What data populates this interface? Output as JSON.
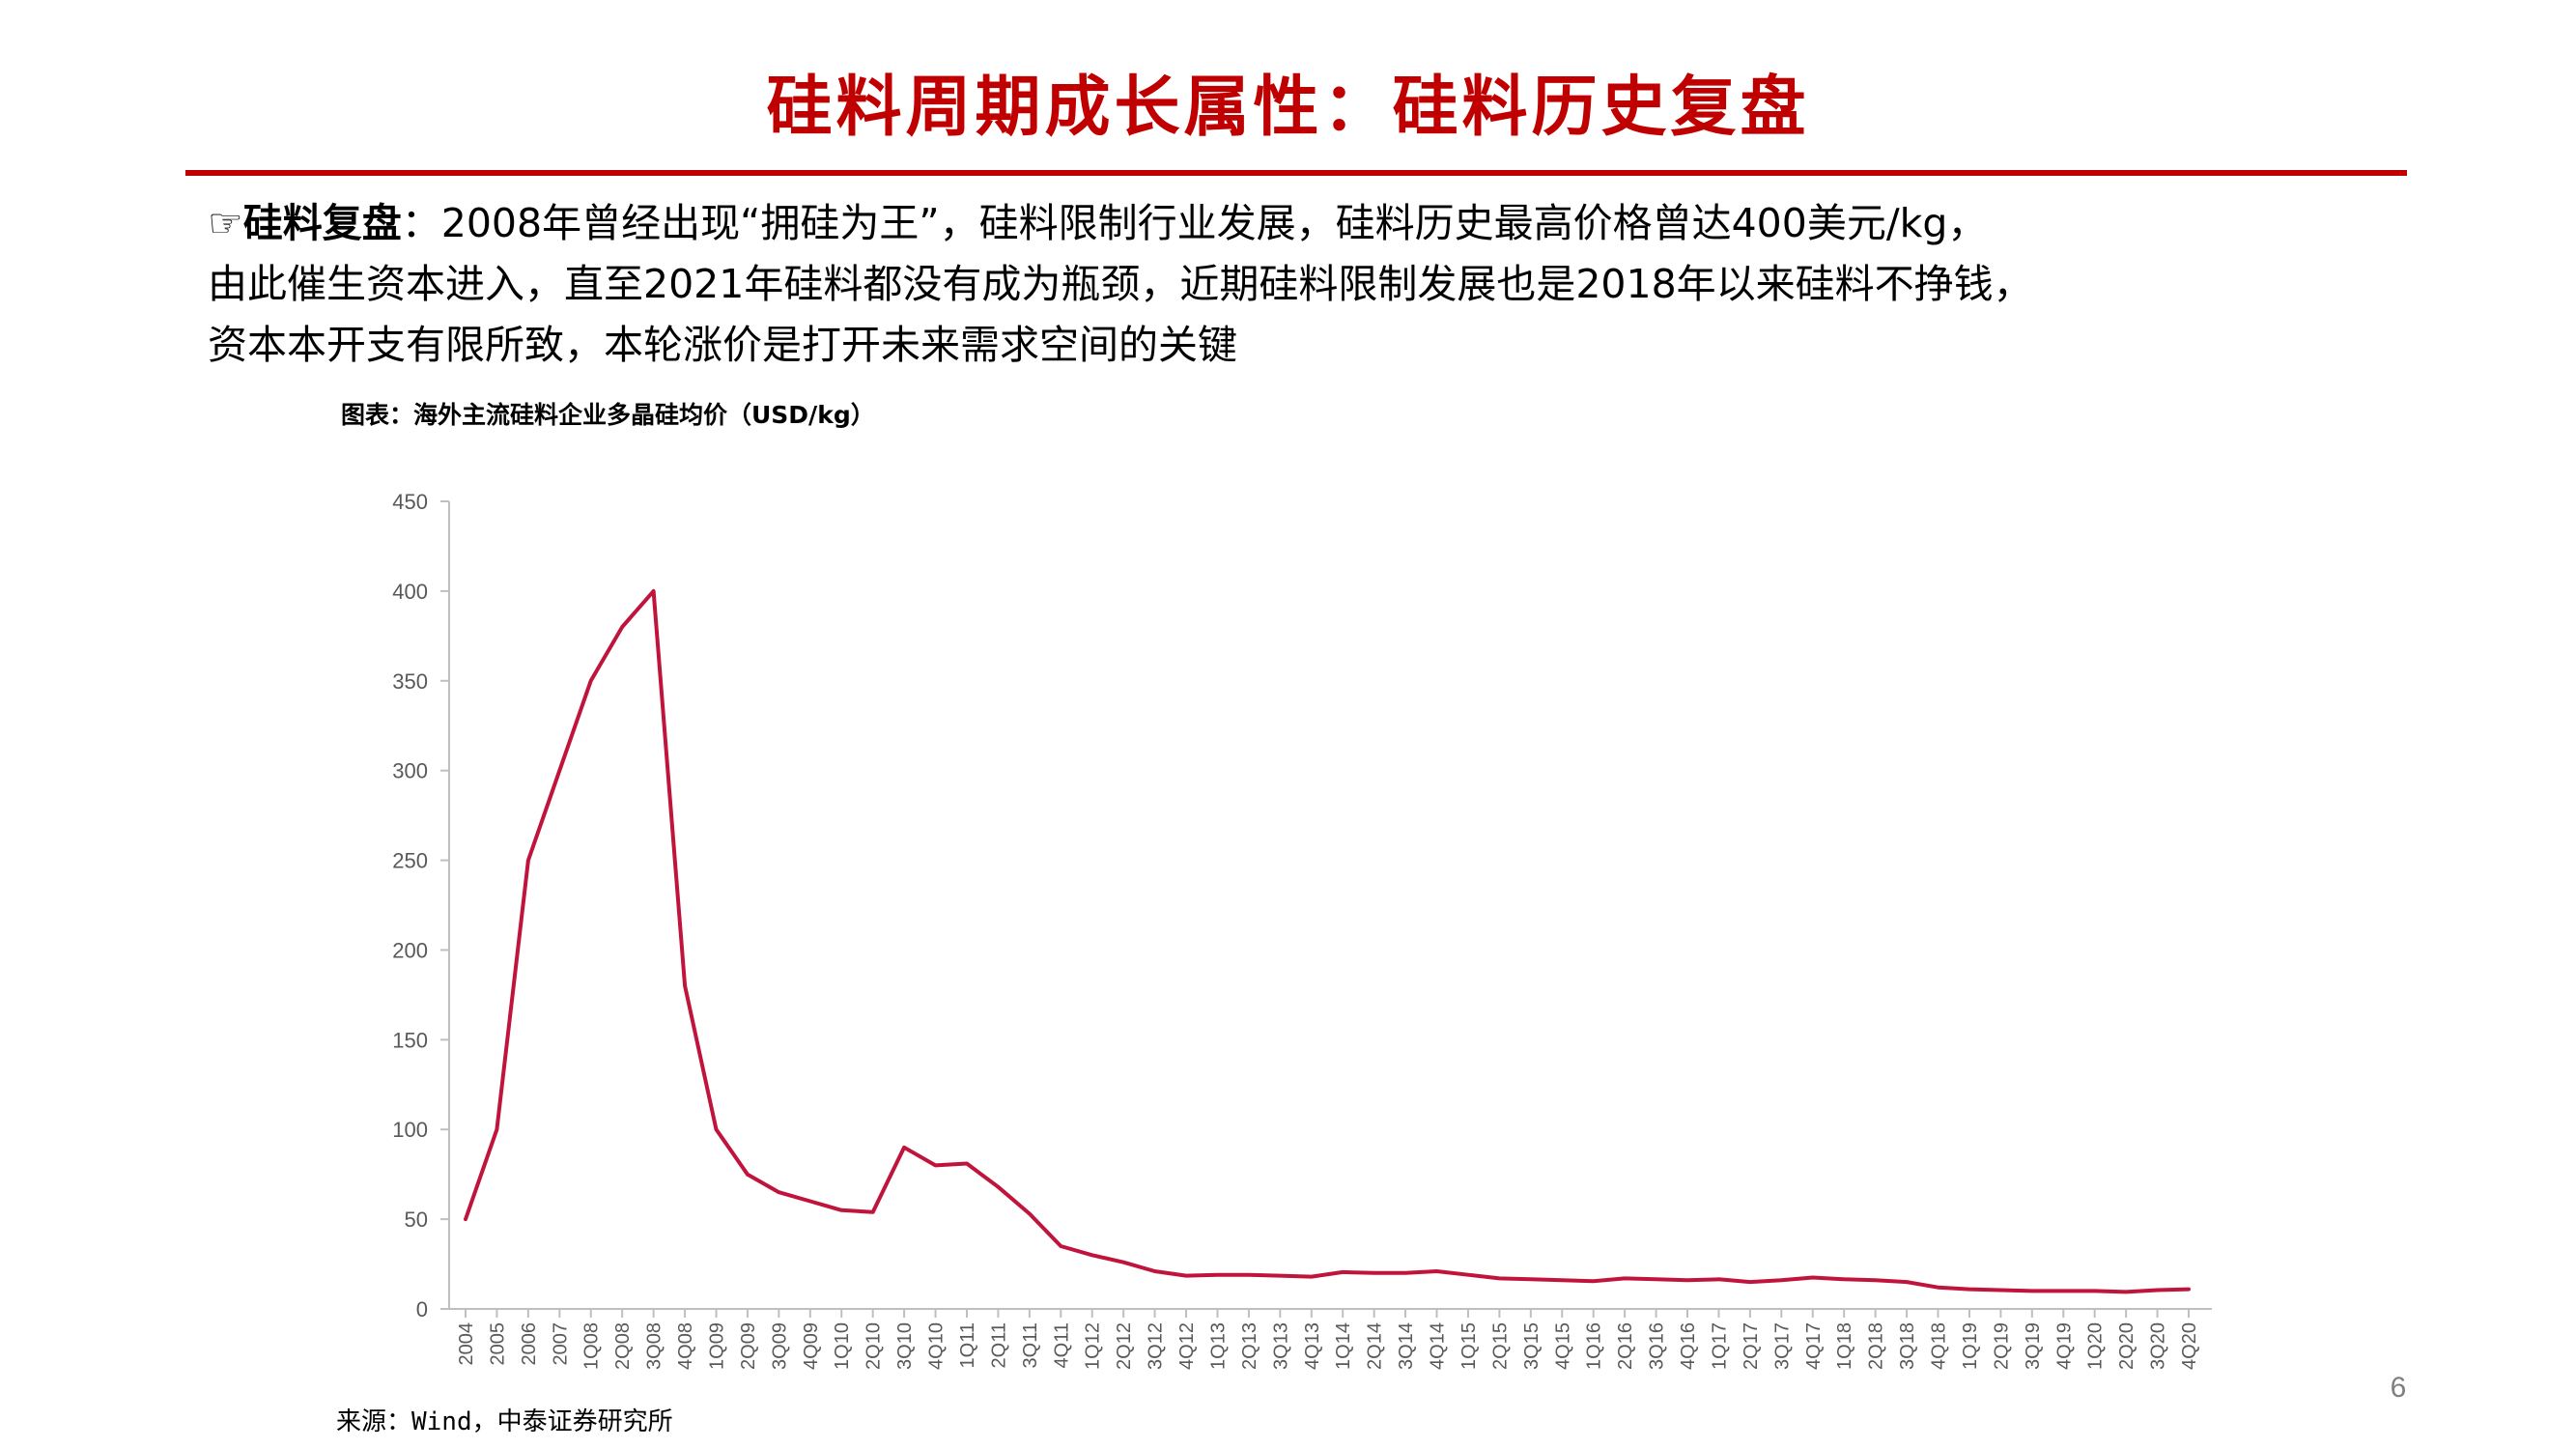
{
  "slide": {
    "title": "硅料周期成长属性：硅料历史复盘",
    "page_number": "6",
    "accent_color": "#C00000"
  },
  "intro": {
    "pointer_icon": "☞",
    "lead": "硅料复盘",
    "line1": "：2008年曾经出现“拥硅为王”，硅料限制行业发展，硅料历史最高价格曾达400美元/kg，",
    "line2": "由此催生资本进入，直至2021年硅料都没有成为瓶颈，近期硅料限制发展也是2018年以来硅料不挣钱，",
    "line3": "资本本开支有限所致，本轮涨价是打开未来需求空间的关键"
  },
  "chart_caption": "图表：海外主流硅料企业多晶硅均价（USD/kg）",
  "source": "来源：Wind，中泰证券研究所",
  "chart_data": {
    "type": "line",
    "title": "",
    "xlabel": "",
    "ylabel": "",
    "ylim": [
      0,
      450
    ],
    "yticks": [
      0,
      50,
      100,
      150,
      200,
      250,
      300,
      350,
      400,
      450
    ],
    "grid": false,
    "legend": "none",
    "line_color": "#C0143C",
    "categories": [
      "2004",
      "2005",
      "2006",
      "2007",
      "1Q08",
      "2Q08",
      "3Q08",
      "4Q08",
      "1Q09",
      "2Q09",
      "3Q09",
      "4Q09",
      "1Q10",
      "2Q10",
      "3Q10",
      "4Q10",
      "1Q11",
      "2Q11",
      "3Q11",
      "4Q11",
      "1Q12",
      "2Q12",
      "3Q12",
      "4Q12",
      "1Q13",
      "2Q13",
      "3Q13",
      "4Q13",
      "1Q14",
      "2Q14",
      "3Q14",
      "4Q14",
      "1Q15",
      "2Q15",
      "3Q15",
      "4Q15",
      "1Q16",
      "2Q16",
      "3Q16",
      "4Q16",
      "1Q17",
      "2Q17",
      "3Q17",
      "4Q17",
      "1Q18",
      "2Q18",
      "3Q18",
      "4Q18",
      "1Q19",
      "2Q19",
      "3Q19",
      "4Q19",
      "1Q20",
      "2Q20",
      "3Q20",
      "4Q20"
    ],
    "series": [
      {
        "values": [
          50,
          100,
          250,
          300,
          350,
          380,
          400,
          180,
          100,
          75,
          65,
          60,
          55,
          54,
          90,
          80,
          81,
          68,
          53,
          35,
          30,
          26,
          21,
          18.5,
          19,
          19,
          18.5,
          18,
          20.5,
          20,
          20,
          21,
          19,
          17,
          16.5,
          16,
          15.5,
          17,
          16.5,
          16,
          16.5,
          15,
          16,
          17.5,
          16.5,
          16,
          15,
          12,
          11,
          10.5,
          10,
          10,
          10,
          9.5,
          10.5,
          11
        ]
      }
    ]
  }
}
